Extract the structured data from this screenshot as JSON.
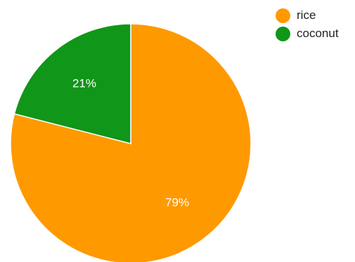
{
  "chart_data": {
    "type": "pie",
    "categories": [
      "rice",
      "coconut"
    ],
    "values": [
      79,
      21
    ],
    "labels": [
      "79%",
      "21%"
    ],
    "colors": [
      "#ff9900",
      "#109618"
    ],
    "start_angle_deg": 0,
    "direction": "clockwise",
    "legend_position": "top-right",
    "title": ""
  }
}
